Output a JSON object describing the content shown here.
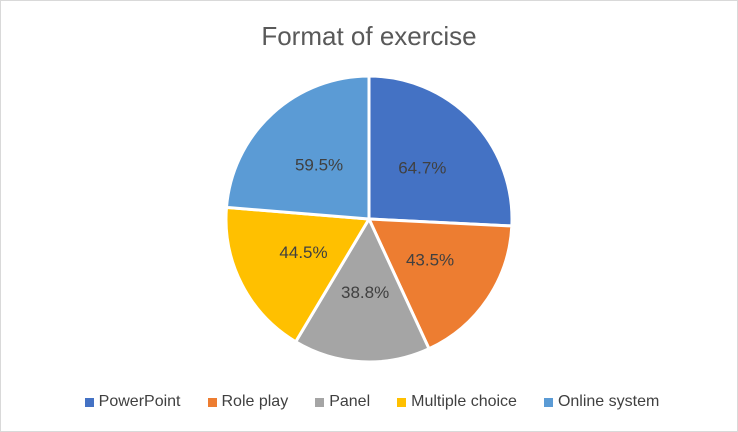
{
  "chart_data": {
    "type": "pie",
    "title": "Format of exercise",
    "categories": [
      "PowerPoint",
      "Role play",
      "Panel",
      "Multiple choice",
      "Online system"
    ],
    "values": [
      64.7,
      43.5,
      38.8,
      44.5,
      59.5
    ],
    "slice_labels": [
      "64.7%",
      "43.5%",
      "38.8%",
      "44.5%",
      "59.5%"
    ],
    "colors": [
      "#4472C4",
      "#ED7D31",
      "#A5A5A5",
      "#FFC000",
      "#5B9BD5"
    ],
    "legend_position": "bottom",
    "start_angle_deg": 0,
    "label_color": "#404040",
    "title_color": "#595959",
    "slice_border_color": "#FFFFFF"
  }
}
